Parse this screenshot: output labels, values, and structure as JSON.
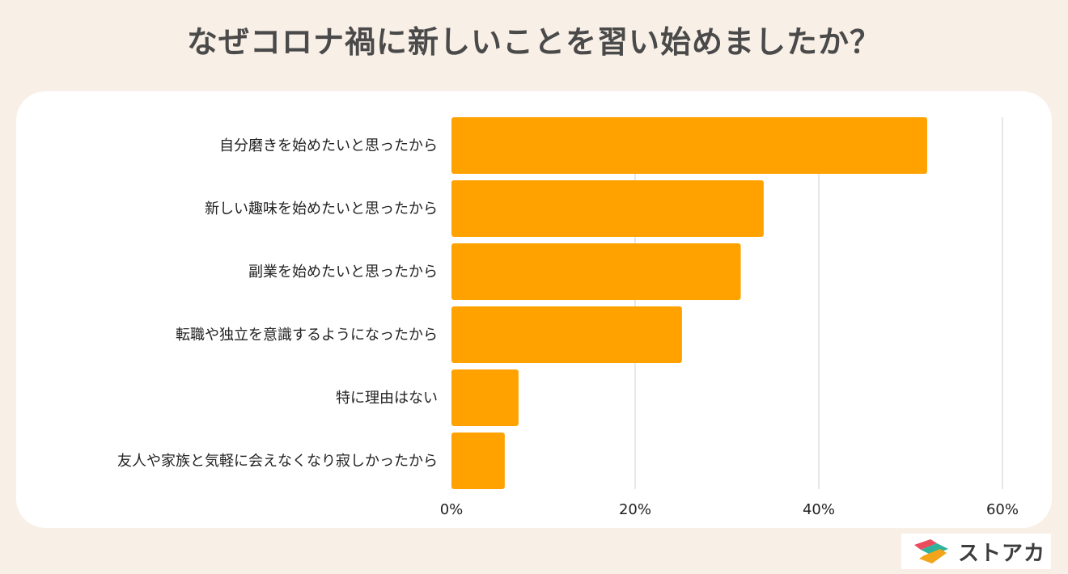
{
  "title": "なぜコロナ禍に新しいことを習い始めましたか？",
  "chart_data": {
    "type": "bar",
    "orientation": "horizontal",
    "title": "なぜコロナ禍に新しいことを習い始めましたか？",
    "categories": [
      "自分磨きを始めたいと思ったから",
      "新しい趣味を始めたいと思ったから",
      "副業を始めたいと思ったから",
      "転職や独立を意識するようになったから",
      "特に理由はない",
      "友人や家族と気軽に会えなくなり寂しかったから"
    ],
    "values": [
      51.8,
      34.0,
      31.5,
      25.1,
      7.3,
      5.8
    ],
    "xlim": [
      0,
      60
    ],
    "ticks": [
      0,
      20,
      40,
      60
    ],
    "tick_labels": [
      "0%",
      "20%",
      "40%",
      "60%"
    ],
    "unit": "%",
    "bar_color": "#ffa200",
    "grid": true,
    "legend": "none"
  },
  "logo": {
    "text": "ストアカ",
    "colors": [
      "#e94c5c",
      "#2fb39a",
      "#f2a51a"
    ]
  }
}
